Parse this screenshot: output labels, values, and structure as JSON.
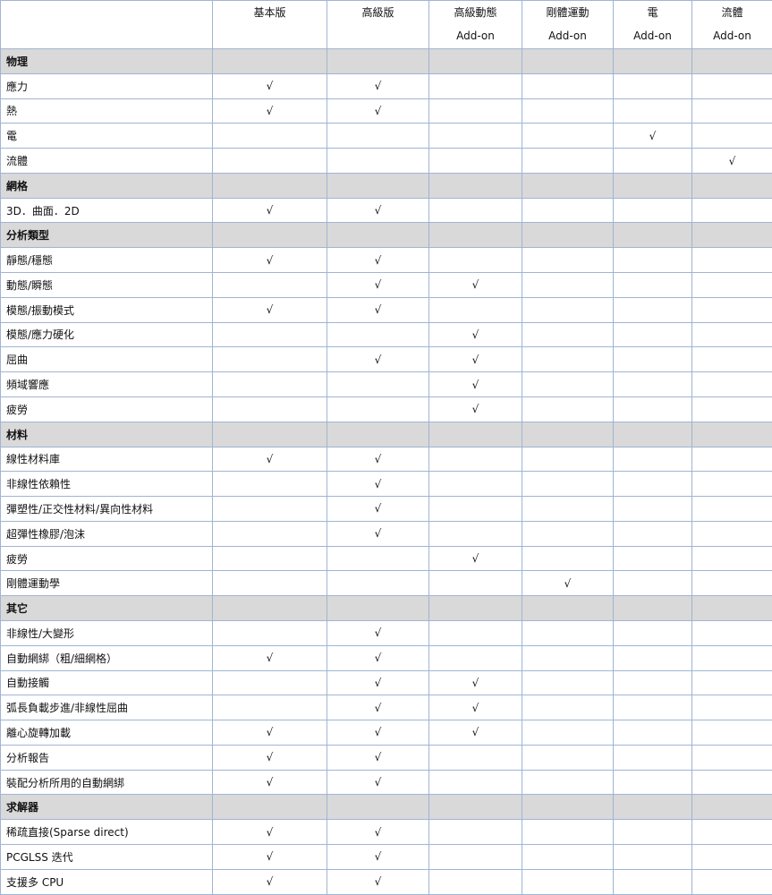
{
  "table": {
    "columns": [
      {
        "line1": "",
        "line2": ""
      },
      {
        "line1": "基本版",
        "line2": ""
      },
      {
        "line1": "高級版",
        "line2": ""
      },
      {
        "line1": "高級動態",
        "line2": "Add-on"
      },
      {
        "line1": "剛體運動",
        "line2": "Add-on"
      },
      {
        "line1": "電",
        "line2": "Add-on"
      },
      {
        "line1": "流體",
        "line2": "Add-on"
      }
    ],
    "check_symbol": "√",
    "rows": [
      {
        "section": true,
        "label": "物理"
      },
      {
        "label": "應力",
        "checks": [
          1,
          1,
          0,
          0,
          0,
          0
        ]
      },
      {
        "label": "熱",
        "checks": [
          1,
          1,
          0,
          0,
          0,
          0
        ]
      },
      {
        "label": "電",
        "checks": [
          0,
          0,
          0,
          0,
          1,
          0
        ]
      },
      {
        "label": "流體",
        "checks": [
          0,
          0,
          0,
          0,
          0,
          1
        ]
      },
      {
        "section": true,
        "label": "網格"
      },
      {
        "label": "3D．曲面．2D",
        "checks": [
          1,
          1,
          0,
          0,
          0,
          0
        ]
      },
      {
        "section": true,
        "label": "分析類型"
      },
      {
        "label": "靜態/穩態",
        "checks": [
          1,
          1,
          0,
          0,
          0,
          0
        ]
      },
      {
        "label": "動態/瞬態",
        "checks": [
          0,
          1,
          1,
          0,
          0,
          0
        ]
      },
      {
        "label": "模態/振動模式",
        "checks": [
          1,
          1,
          0,
          0,
          0,
          0
        ]
      },
      {
        "label": "模態/應力硬化",
        "checks": [
          0,
          0,
          1,
          0,
          0,
          0
        ]
      },
      {
        "label": "屈曲",
        "checks": [
          0,
          1,
          1,
          0,
          0,
          0
        ]
      },
      {
        "label": "頻域響應",
        "checks": [
          0,
          0,
          1,
          0,
          0,
          0
        ]
      },
      {
        "label": "疲勞",
        "checks": [
          0,
          0,
          1,
          0,
          0,
          0
        ]
      },
      {
        "section": true,
        "label": "材料"
      },
      {
        "label": "線性材料庫",
        "checks": [
          1,
          1,
          0,
          0,
          0,
          0
        ]
      },
      {
        "label": "非線性依賴性",
        "checks": [
          0,
          1,
          0,
          0,
          0,
          0
        ]
      },
      {
        "label": "彈塑性/正交性材料/異向性材料",
        "checks": [
          0,
          1,
          0,
          0,
          0,
          0
        ]
      },
      {
        "label": "超彈性橡膠/泡沫",
        "checks": [
          0,
          1,
          0,
          0,
          0,
          0
        ]
      },
      {
        "label": "疲勞",
        "checks": [
          0,
          0,
          1,
          0,
          0,
          0
        ]
      },
      {
        "label": "剛體運動學",
        "checks": [
          0,
          0,
          0,
          1,
          0,
          0
        ]
      },
      {
        "section": true,
        "label": "其它"
      },
      {
        "label": "非線性/大變形",
        "checks": [
          0,
          1,
          0,
          0,
          0,
          0
        ]
      },
      {
        "label": "自動網綁（粗/細網格）",
        "checks": [
          1,
          1,
          0,
          0,
          0,
          0
        ]
      },
      {
        "label": "自動接觸",
        "checks": [
          0,
          1,
          1,
          0,
          0,
          0
        ]
      },
      {
        "label": "弧長負載步進/非線性屈曲",
        "checks": [
          0,
          1,
          1,
          0,
          0,
          0
        ]
      },
      {
        "label": "離心旋轉加載",
        "checks": [
          1,
          1,
          1,
          0,
          0,
          0
        ]
      },
      {
        "label": "分析報告",
        "checks": [
          1,
          1,
          0,
          0,
          0,
          0
        ]
      },
      {
        "label": "裝配分析所用的自動網綁",
        "checks": [
          1,
          1,
          0,
          0,
          0,
          0
        ]
      },
      {
        "section": true,
        "label": "求解器"
      },
      {
        "label": "稀疏直接(Sparse direct)",
        "checks": [
          1,
          1,
          0,
          0,
          0,
          0
        ]
      },
      {
        "label": "PCGLSS 迭代",
        "checks": [
          1,
          1,
          0,
          0,
          0,
          0
        ]
      },
      {
        "label": "支援多 CPU",
        "checks": [
          1,
          1,
          0,
          0,
          0,
          0
        ]
      }
    ]
  }
}
